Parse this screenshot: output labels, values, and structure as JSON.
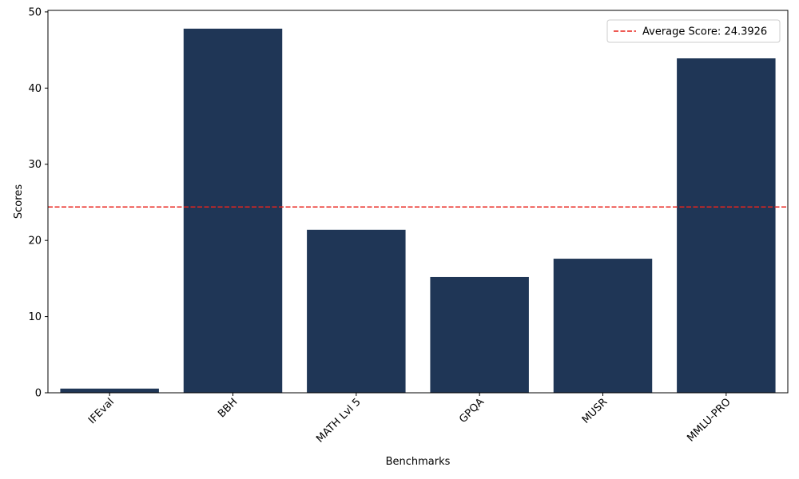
{
  "chart_data": {
    "type": "bar",
    "categories": [
      "IFEval",
      "BBH",
      "MATH Lvl 5",
      "GPQA",
      "MUSR",
      "MMLU-PRO"
    ],
    "values": [
      0.55,
      47.8,
      21.4,
      15.2,
      17.6,
      43.9
    ],
    "title": "",
    "xlabel": "Benchmarks",
    "ylabel": "Scores",
    "ylim": [
      0,
      50.2
    ],
    "yticks": [
      0,
      10,
      20,
      30,
      40,
      50
    ],
    "bar_color": "#1f3656",
    "grid": false,
    "reference_line": {
      "value": 24.3926,
      "label": "Average Score: 24.3926",
      "color": "#e8231c",
      "style": "dashed"
    },
    "legend_position": "top-right",
    "xtick_rotation": 45
  }
}
